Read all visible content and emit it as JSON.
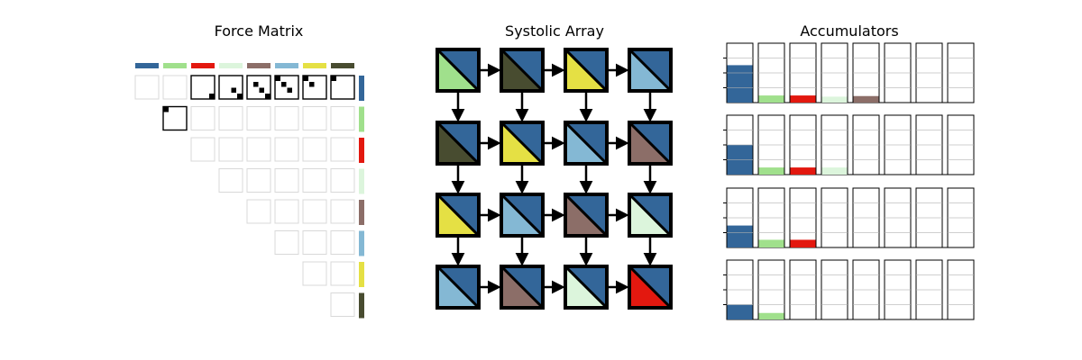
{
  "panels": {
    "force_matrix": {
      "title": "Force Matrix"
    },
    "systolic_array": {
      "title": "Systolic Array"
    },
    "accumulators": {
      "title": "Accumulators"
    }
  },
  "palette": {
    "blue": "#336699",
    "lightgreen": "#a0e08c",
    "red": "#e3180f",
    "mint": "#dcf5dc",
    "brown": "#8c6e68",
    "skyblue": "#84b8d4",
    "yellow": "#e5e044",
    "olive": "#484c30"
  },
  "particle_order": [
    "blue",
    "lightgreen",
    "red",
    "mint",
    "brown",
    "skyblue",
    "yellow",
    "olive"
  ],
  "force_matrix": {
    "size": 8,
    "active_cells": [
      {
        "row": 0,
        "col": 2,
        "marks": [
          [
            3,
            3
          ]
        ]
      },
      {
        "row": 0,
        "col": 3,
        "marks": [
          [
            2,
            2
          ],
          [
            3,
            3
          ]
        ]
      },
      {
        "row": 0,
        "col": 4,
        "marks": [
          [
            1,
            1
          ],
          [
            2,
            2
          ],
          [
            3,
            3
          ]
        ]
      },
      {
        "row": 0,
        "col": 5,
        "marks": [
          [
            0,
            0
          ],
          [
            1,
            1
          ],
          [
            2,
            2
          ]
        ]
      },
      {
        "row": 0,
        "col": 6,
        "marks": [
          [
            0,
            0
          ],
          [
            1,
            1
          ]
        ]
      },
      {
        "row": 0,
        "col": 7,
        "marks": [
          [
            0,
            0
          ]
        ]
      },
      {
        "row": 1,
        "col": 1,
        "marks": [
          [
            0,
            0
          ]
        ]
      }
    ]
  },
  "systolic_array": {
    "cells": [
      [
        [
          "lightgreen",
          "blue"
        ],
        [
          "olive",
          "blue"
        ],
        [
          "yellow",
          "blue"
        ],
        [
          "skyblue",
          "blue"
        ]
      ],
      [
        [
          "olive",
          "blue"
        ],
        [
          "yellow",
          "blue"
        ],
        [
          "skyblue",
          "blue"
        ],
        [
          "brown",
          "blue"
        ]
      ],
      [
        [
          "yellow",
          "blue"
        ],
        [
          "skyblue",
          "blue"
        ],
        [
          "brown",
          "blue"
        ],
        [
          "mint",
          "blue"
        ]
      ],
      [
        [
          "skyblue",
          "blue"
        ],
        [
          "brown",
          "blue"
        ],
        [
          "mint",
          "blue"
        ],
        [
          "red",
          "blue"
        ]
      ]
    ]
  },
  "accumulators": {
    "rows": [
      [
        0.63,
        0.12,
        0.12,
        0.1,
        0.11,
        0,
        0,
        0
      ],
      [
        0.5,
        0.12,
        0.12,
        0.12,
        0,
        0,
        0,
        0
      ],
      [
        0.37,
        0.13,
        0.13,
        0,
        0,
        0,
        0,
        0
      ],
      [
        0.25,
        0.11,
        0,
        0,
        0,
        0,
        0,
        0
      ]
    ]
  }
}
